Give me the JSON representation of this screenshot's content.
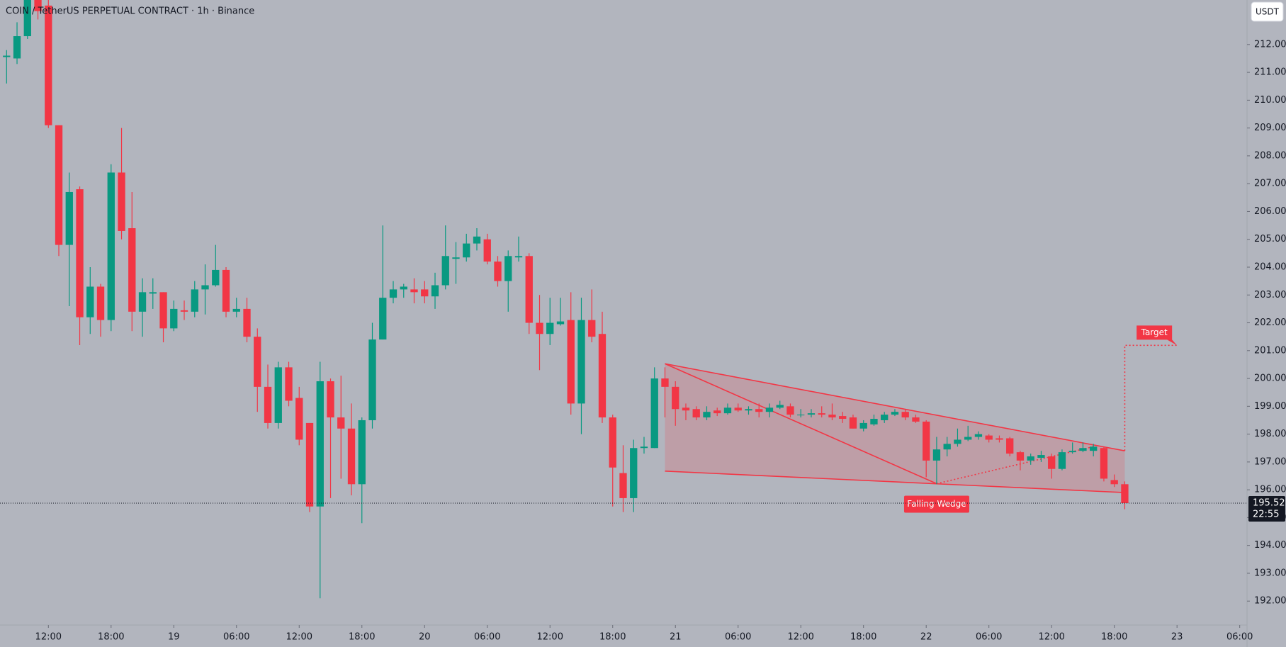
{
  "chart_data": {
    "type": "candlestick",
    "title": "COIN / TetherUS PERPETUAL CONTRACT · 1h · Binance",
    "currency_button": "USDT",
    "up_color": "#089981",
    "down_color": "#f23645",
    "open": [
      211.55,
      211.5,
      212.3,
      213.8,
      213.4,
      209.1,
      204.8,
      206.8,
      202.2,
      203.3,
      202.1,
      207.4,
      205.4,
      202.4,
      203.05,
      203.1,
      201.8,
      202.45,
      202.4,
      203.2,
      203.35,
      203.9,
      202.4,
      202.5,
      201.5,
      199.7,
      198.4,
      200.4,
      199.3,
      198.4,
      195.4,
      199.9,
      198.6,
      198.2,
      196.2,
      198.5,
      201.4,
      202.9,
      203.2,
      203.2,
      203.2,
      202.95,
      203.35,
      204.3,
      204.35,
      204.85,
      205.0,
      204.2,
      203.5,
      204.35,
      204.4,
      202.0,
      201.6,
      201.95,
      202.1,
      199.1,
      202.1,
      201.6,
      198.6,
      196.6,
      195.7,
      197.5,
      197.5,
      200.0,
      199.7,
      198.95,
      198.9,
      198.6,
      198.85,
      198.75,
      198.95,
      198.85,
      198.9,
      198.8,
      198.95,
      199.0,
      198.7,
      198.7,
      198.75,
      198.7,
      198.65,
      198.6,
      198.2,
      198.35,
      198.5,
      198.7,
      198.8,
      198.6,
      198.45,
      197.05,
      197.45,
      197.65,
      197.8,
      197.9,
      197.95,
      197.85,
      197.85,
      197.35,
      197.05,
      197.15,
      197.2,
      196.75,
      197.35,
      197.4,
      197.4,
      197.5,
      196.35,
      196.2
    ],
    "high": [
      211.8,
      212.8,
      214,
      214.2,
      213.8,
      209.1,
      207.4,
      206.9,
      204.0,
      203.4,
      207.7,
      209.0,
      206.7,
      203.6,
      203.6,
      203.1,
      202.8,
      202.8,
      203.5,
      204.1,
      204.8,
      204.0,
      202.9,
      202.9,
      201.8,
      200.5,
      200.6,
      200.6,
      199.7,
      198.4,
      200.6,
      200.0,
      200.1,
      199.1,
      198.6,
      202.0,
      205.5,
      203.5,
      203.4,
      203.6,
      203.5,
      203.8,
      205.5,
      204.9,
      205.2,
      205.4,
      205.2,
      204.4,
      204.6,
      205.1,
      204.5,
      203.0,
      202.9,
      202.9,
      203.1,
      202.9,
      203.2,
      202.4,
      198.7,
      197.6,
      197.8,
      197.9,
      200.4,
      200.4,
      199.9,
      199.1,
      199.0,
      199.0,
      198.95,
      199.1,
      199.1,
      199.0,
      199.1,
      199.1,
      199.2,
      199.1,
      198.9,
      198.9,
      199.0,
      199.1,
      198.8,
      198.7,
      198.5,
      198.7,
      198.8,
      198.9,
      198.9,
      198.7,
      198.5,
      197.9,
      197.9,
      198.2,
      198.3,
      198.1,
      198.0,
      197.95,
      197.9,
      197.4,
      197.3,
      197.4,
      197.3,
      197.45,
      197.7,
      197.7,
      197.65,
      197.55,
      196.55,
      196.3
    ],
    "low": [
      210.6,
      211.3,
      212.2,
      212.9,
      209.0,
      204.4,
      202.6,
      201.2,
      201.6,
      201.5,
      201.7,
      205.0,
      201.7,
      201.5,
      202.5,
      201.3,
      201.7,
      202.1,
      202.2,
      202.3,
      203.3,
      202.2,
      202.2,
      201.3,
      198.8,
      198.2,
      198.2,
      199.0,
      197.6,
      195.2,
      192.1,
      195.7,
      196.4,
      195.8,
      194.8,
      198.2,
      201.4,
      202.7,
      202.9,
      202.7,
      202.7,
      202.5,
      203.2,
      203.4,
      204.2,
      204.6,
      204.1,
      203.3,
      202.4,
      204.2,
      201.6,
      200.3,
      201.2,
      201.9,
      198.7,
      198.0,
      201.3,
      198.4,
      195.4,
      195.2,
      195.2,
      197.3,
      197.5,
      198.6,
      198.3,
      198.5,
      198.5,
      198.5,
      198.65,
      198.7,
      198.8,
      198.7,
      198.6,
      198.6,
      198.9,
      198.6,
      198.6,
      198.6,
      198.6,
      198.5,
      198.4,
      198.2,
      198.1,
      198.3,
      198.4,
      198.65,
      198.5,
      198.4,
      196.45,
      196.2,
      197.2,
      197.55,
      197.75,
      197.8,
      197.7,
      197.7,
      197.2,
      196.7,
      196.9,
      197.0,
      196.4,
      196.7,
      197.3,
      197.35,
      197.2,
      196.3,
      196.1,
      195.3
    ],
    "close": [
      211.6,
      212.3,
      213.6,
      213.2,
      209.1,
      204.8,
      206.7,
      202.2,
      203.3,
      202.1,
      207.4,
      205.3,
      202.4,
      203.1,
      203.1,
      201.8,
      202.5,
      202.4,
      203.2,
      203.35,
      203.9,
      202.4,
      202.5,
      201.5,
      199.7,
      198.4,
      200.4,
      199.2,
      197.8,
      195.4,
      199.9,
      198.6,
      198.2,
      196.2,
      198.5,
      201.4,
      202.9,
      203.2,
      203.3,
      203.1,
      202.95,
      203.35,
      204.4,
      204.35,
      204.85,
      205.1,
      204.2,
      203.5,
      204.4,
      204.4,
      202.0,
      201.6,
      202.0,
      202.05,
      199.1,
      202.1,
      201.5,
      198.6,
      196.8,
      195.7,
      197.5,
      197.55,
      200.0,
      199.7,
      198.9,
      198.85,
      198.6,
      198.8,
      198.75,
      198.95,
      198.85,
      198.9,
      198.8,
      198.95,
      199.05,
      198.7,
      198.7,
      198.75,
      198.7,
      198.6,
      198.55,
      198.2,
      198.4,
      198.55,
      198.7,
      198.8,
      198.6,
      198.45,
      197.05,
      197.45,
      197.65,
      197.8,
      197.9,
      198.0,
      197.8,
      197.8,
      197.3,
      197.05,
      197.2,
      197.25,
      196.75,
      197.35,
      197.4,
      197.5,
      197.55,
      196.4,
      196.2,
      195.52
    ],
    "last_price": 195.52,
    "countdown": "22:55",
    "xlim": [
      -0.63,
      118.7
    ],
    "xticks": [
      {
        "value": 4,
        "label": "12:00"
      },
      {
        "value": 10,
        "label": "18:00"
      },
      {
        "value": 16,
        "label": "19"
      },
      {
        "value": 22,
        "label": "06:00"
      },
      {
        "value": 28,
        "label": "12:00"
      },
      {
        "value": 34,
        "label": "18:00"
      },
      {
        "value": 40,
        "label": "20"
      },
      {
        "value": 46,
        "label": "06:00"
      },
      {
        "value": 52,
        "label": "12:00"
      },
      {
        "value": 58,
        "label": "18:00"
      },
      {
        "value": 64,
        "label": "21"
      },
      {
        "value": 70,
        "label": "06:00"
      },
      {
        "value": 76,
        "label": "12:00"
      },
      {
        "value": 82,
        "label": "18:00"
      },
      {
        "value": 88,
        "label": "22"
      },
      {
        "value": 94,
        "label": "06:00"
      },
      {
        "value": 100,
        "label": "12:00"
      },
      {
        "value": 106,
        "label": "18:00"
      },
      {
        "value": 112,
        "label": "23"
      },
      {
        "value": 118,
        "label": "06:00"
      }
    ],
    "ylim": [
      191.14,
      213.6
    ],
    "yticks": [
      {
        "value": 192,
        "label": "192.00"
      },
      {
        "value": 193,
        "label": "193.00"
      },
      {
        "value": 194,
        "label": "194.00"
      },
      {
        "value": 195,
        "label": "195.00"
      },
      {
        "value": 196,
        "label": "196.00"
      },
      {
        "value": 197,
        "label": "197.00"
      },
      {
        "value": 198,
        "label": "198.00"
      },
      {
        "value": 199,
        "label": "199.00"
      },
      {
        "value": 200,
        "label": "200.00"
      },
      {
        "value": 201,
        "label": "201.00"
      },
      {
        "value": 202,
        "label": "202.00"
      },
      {
        "value": 203,
        "label": "203.00"
      },
      {
        "value": 204,
        "label": "204.00"
      },
      {
        "value": 205,
        "label": "205.00"
      },
      {
        "value": 206,
        "label": "206.00"
      },
      {
        "value": 207,
        "label": "207.00"
      },
      {
        "value": 208,
        "label": "208.00"
      },
      {
        "value": 209,
        "label": "209.00"
      },
      {
        "value": 210,
        "label": "210.00"
      },
      {
        "value": 211,
        "label": "211.00"
      },
      {
        "value": 212,
        "label": "212.00"
      }
    ],
    "pattern": {
      "label": "Falling Wedge",
      "color": "#f23645",
      "upper": [
        [
          63,
          200.53
        ],
        [
          107,
          197.4
        ]
      ],
      "lower": [
        [
          63,
          196.67
        ],
        [
          107,
          195.9
        ]
      ],
      "swing": [
        [
          63,
          200.53
        ],
        [
          89,
          196.22
        ]
      ],
      "projection": [
        [
          89,
          196.22
        ],
        [
          104,
          197.55
        ]
      ],
      "target_label": "Target",
      "target": [
        [
          107,
          197.4
        ],
        [
          107,
          201.19
        ],
        [
          112,
          201.19
        ]
      ]
    }
  }
}
